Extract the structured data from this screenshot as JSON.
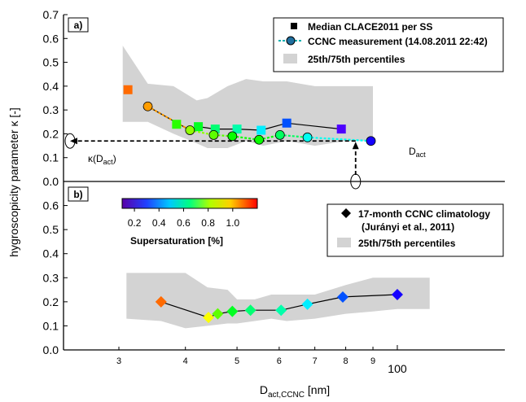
{
  "chart_data": [
    {
      "type": "scatter",
      "panel_label": "a)",
      "ylabel": "hygroscopicity parameter κ [-]",
      "x_scale": "log",
      "ylim": [
        0.0,
        0.7
      ],
      "y_ticks": [
        0.0,
        0.1,
        0.2,
        0.3,
        0.4,
        0.5,
        0.6,
        0.7
      ],
      "y_tick_labels": [
        "0.0",
        "0.1",
        "0.2",
        "0.3",
        "0.4",
        "0.5",
        "0.6",
        "0.7"
      ],
      "legend": {
        "position": "top-right",
        "entries": [
          "Median CLACE2011 per SS",
          "CCNC measurement (14.08.2011 22:42)",
          "25th/75th percentiles"
        ]
      },
      "series": [
        {
          "name": "Median CLACE2011 per SS",
          "marker": "square",
          "x": [
            31.2,
            38.5,
            42.3,
            45.5,
            50.0,
            55.5,
            62.0,
            78.5
          ],
          "y": [
            0.385,
            0.24,
            0.23,
            0.22,
            0.22,
            0.215,
            0.245,
            0.22
          ],
          "ss": [
            1.1,
            0.75,
            0.68,
            0.6,
            0.55,
            0.45,
            0.3,
            0.15
          ]
        },
        {
          "name": "CCNC measurement (14.08.2011 22:42)",
          "marker": "circle",
          "x": [
            34.0,
            40.8,
            45.2,
            49.0,
            55.0,
            60.2,
            67.8,
            89.2
          ],
          "y": [
            0.315,
            0.215,
            0.195,
            0.19,
            0.175,
            0.195,
            0.185,
            0.17
          ],
          "ss": [
            1.05,
            0.85,
            0.8,
            0.72,
            0.72,
            0.62,
            0.48,
            0.2
          ]
        },
        {
          "name": "25th/75th percentiles",
          "type": "area",
          "x": [
            30.5,
            34,
            38,
            42,
            44,
            48,
            52,
            56,
            62,
            70,
            80,
            90
          ],
          "lower": [
            0.25,
            0.25,
            0.2,
            0.16,
            0.14,
            0.14,
            0.17,
            0.15,
            0.17,
            0.15,
            0.17,
            0.17
          ],
          "upper": [
            0.57,
            0.41,
            0.4,
            0.34,
            0.35,
            0.4,
            0.43,
            0.42,
            0.42,
            0.4,
            0.4,
            0.4
          ]
        }
      ],
      "annotations": [
        {
          "text": "κ(D",
          "sub": "act",
          "suffix": ")"
        },
        {
          "text": "D",
          "sub": "act"
        }
      ]
    },
    {
      "type": "scatter",
      "panel_label": "b)",
      "x_scale": "log",
      "xlabel_main": "D",
      "xlabel_sub": "act,CCNC",
      "xlabel_unit": " [nm]",
      "ylim": [
        0.0,
        0.7
      ],
      "y_ticks": [
        0.0,
        0.1,
        0.2,
        0.3,
        0.4,
        0.5,
        0.6
      ],
      "y_tick_labels": [
        "0.0",
        "0.1",
        "0.2",
        "0.3",
        "0.4",
        "0.5",
        "0.6"
      ],
      "x_ticks": [
        30,
        40,
        50,
        60,
        70,
        80,
        90,
        100
      ],
      "x_tick_labels": [
        "3",
        "4",
        "5",
        "6",
        "7",
        "8",
        "9",
        "100"
      ],
      "legend": {
        "position": "top-right",
        "entries": [
          "17-month CCNC climatology",
          "(Jurányi et al., 2011)",
          "25th/75th percentiles"
        ]
      },
      "colorbar": {
        "title": "Supersaturation [%]",
        "range": [
          0.1,
          1.2
        ],
        "tick_labels": [
          "0.2",
          "0.4",
          "0.6",
          "0.8",
          "1.0"
        ],
        "tick_values": [
          0.2,
          0.4,
          0.6,
          0.8,
          1.0
        ]
      },
      "series": [
        {
          "name": "17-month CCNC climatology",
          "marker": "diamond",
          "x": [
            36.0,
            44.2,
            46.0,
            49.0,
            53.0,
            60.5,
            67.8,
            79.0,
            100.0
          ],
          "y": [
            0.2,
            0.135,
            0.15,
            0.16,
            0.165,
            0.165,
            0.19,
            0.22,
            0.23
          ],
          "ss": [
            1.1,
            0.95,
            0.8,
            0.68,
            0.6,
            0.55,
            0.45,
            0.3,
            0.2
          ]
        },
        {
          "name": "25th/75th percentiles",
          "type": "area",
          "x": [
            31,
            36,
            40,
            44,
            48,
            50,
            54,
            58,
            62,
            70,
            80,
            90,
            100,
            115
          ],
          "lower": [
            0.13,
            0.12,
            0.09,
            0.1,
            0.11,
            0.11,
            0.12,
            0.13,
            0.12,
            0.13,
            0.15,
            0.16,
            0.17,
            0.17
          ],
          "upper": [
            0.32,
            0.32,
            0.32,
            0.26,
            0.25,
            0.21,
            0.21,
            0.23,
            0.23,
            0.23,
            0.27,
            0.3,
            0.3,
            0.3
          ]
        }
      ]
    }
  ]
}
